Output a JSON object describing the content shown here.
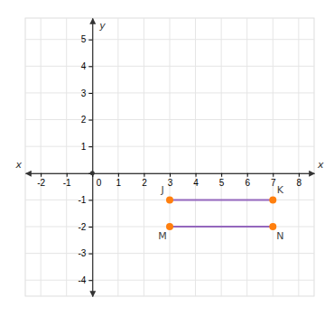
{
  "chart_data": {
    "type": "line",
    "x_label": "x",
    "y_label": "y",
    "series": [
      {
        "x": [
          3,
          7
        ],
        "values": [
          -1,
          -1
        ],
        "labels": [
          "J",
          "K"
        ]
      },
      {
        "x": [
          3,
          7
        ],
        "values": [
          -2,
          -2
        ],
        "labels": [
          "M",
          "N"
        ]
      }
    ],
    "marker": "circle",
    "xlim": [
      -2.6,
      8.6
    ],
    "ylim": [
      -4.6,
      5.8
    ],
    "xticks": [
      -2,
      -1,
      0,
      1,
      2,
      3,
      4,
      5,
      6,
      7,
      8
    ],
    "yticks": [
      -4,
      -3,
      -2,
      -1,
      0,
      1,
      2,
      3,
      4,
      5
    ],
    "grid": true
  }
}
